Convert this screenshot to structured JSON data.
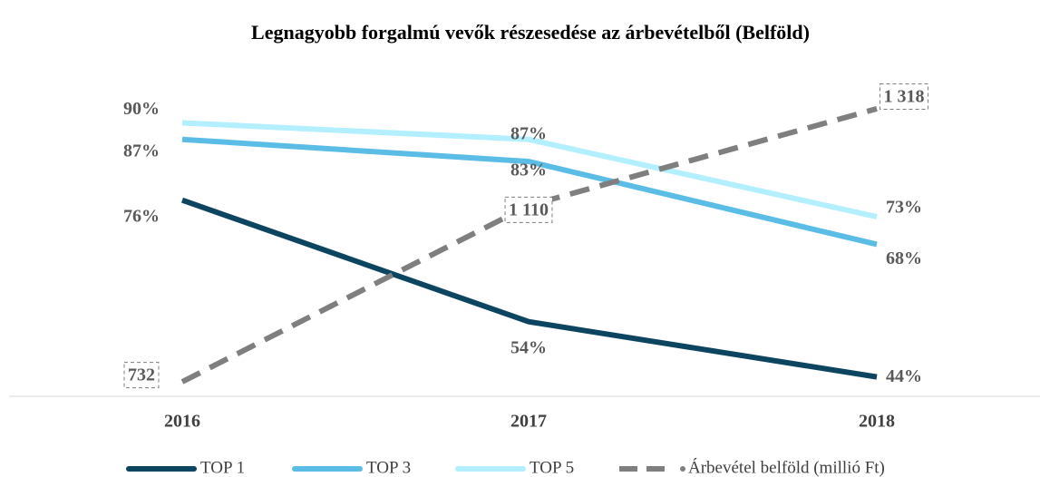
{
  "chart_data": {
    "type": "line",
    "title": "Legnagyobb forgalmú vevők részesedése az árbevételből (Belföld)",
    "categories": [
      "2016",
      "2017",
      "2018"
    ],
    "series": [
      {
        "name": "TOP 1",
        "color": "#0d4560",
        "values": [
          76,
          54,
          44
        ],
        "value_labels": [
          "76%",
          "54%",
          "44%"
        ]
      },
      {
        "name": "TOP 3",
        "color": "#5bbde6",
        "values": [
          87,
          83,
          68
        ],
        "value_labels": [
          "87%",
          "83%",
          "68%"
        ]
      },
      {
        "name": "TOP 5",
        "color": "#b3efff",
        "values": [
          90,
          87,
          73
        ],
        "value_labels": [
          "90%",
          "87%",
          "73%"
        ]
      },
      {
        "name": "Árbevétel belföld (millió Ft)",
        "color": "#7f7f7f",
        "dashed": true,
        "axis": "y2",
        "values": [
          732,
          1110,
          1318
        ],
        "value_labels": [
          "732",
          "1 110",
          "1 318"
        ]
      }
    ],
    "ylim": [
      40,
      95
    ],
    "y2lim": [
      695,
      1347
    ],
    "legend": "bottom"
  }
}
